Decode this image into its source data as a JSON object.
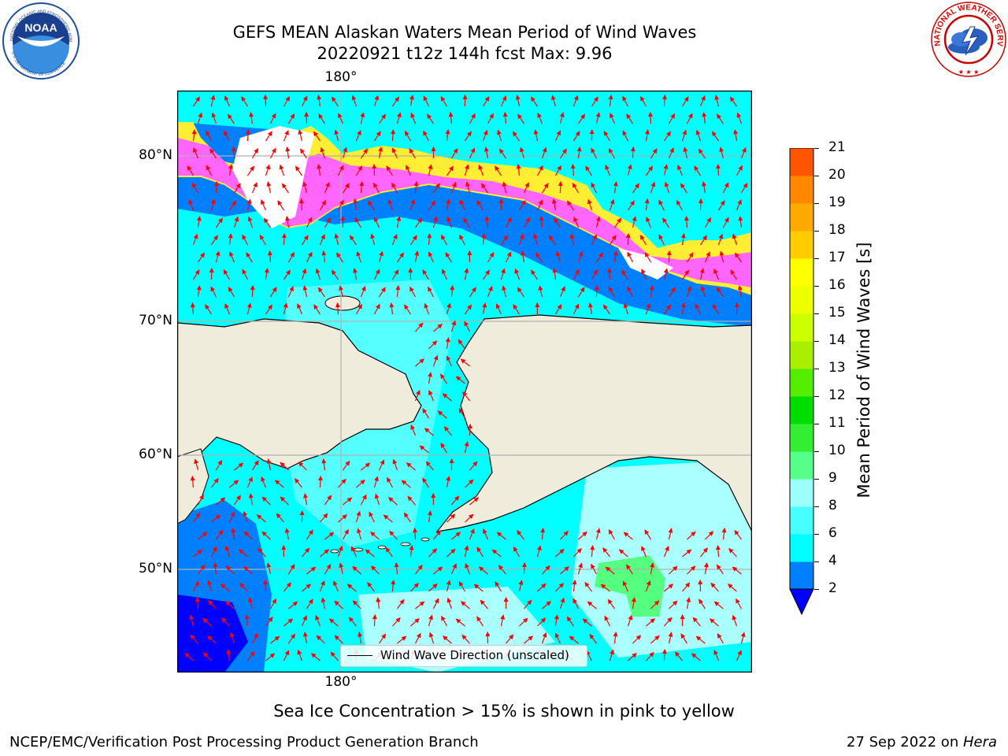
{
  "title": {
    "line1": "GEFS MEAN Alaskan Waters Mean Period of Wind Waves",
    "line2": "20220921 t12z 144h fcst   Max: 9.96"
  },
  "map": {
    "lon_label_top": "180°",
    "lon_label_bottom": "180°",
    "lat_labels": [
      "80°N",
      "70°N",
      "60°N",
      "50°N"
    ],
    "legend_label": "Wind Wave Direction (unscaled)",
    "colors": {
      "land": "#efecdc",
      "ocean_2_4": "#007fff",
      "ocean_4_6": "#00ffff",
      "ocean_6_8": "#55ffff",
      "ocean_8_9": "#aaffff",
      "ocean_9_10": "#55ff7f",
      "below_2": "#0000ff",
      "ice_pink": "#ff66ff",
      "ice_yellow": "#ffee33",
      "arrow": "#ff0000",
      "grid": "#b0b0b0",
      "coast": "#000000"
    }
  },
  "colorbar": {
    "label": "Mean Period of Wind Waves [s]",
    "ticks": [
      "2",
      "4",
      "6",
      "8",
      "9",
      "10",
      "11",
      "12",
      "13",
      "14",
      "15",
      "16",
      "17",
      "18",
      "19",
      "20",
      "21"
    ],
    "colors": [
      "#0080ff",
      "#00ffff",
      "#48ffff",
      "#9dfffc",
      "#55ff88",
      "#33ee33",
      "#00dd00",
      "#55ee00",
      "#aaee00",
      "#ccff00",
      "#eeff00",
      "#ffff00",
      "#ffcc00",
      "#ffaa00",
      "#ff8800",
      "#ff5500",
      "#ff2200",
      "#ff0000"
    ],
    "extend_color": "#0000ff"
  },
  "caption": "Sea Ice Concentration > 15% is shown in pink to yellow",
  "footer": {
    "left": "NCEP/EMC/Verification Post Processing Product Generation Branch",
    "right_date": "27 Sep 2022 on ",
    "right_host": "Hera"
  },
  "logos": {
    "noaa_text": "NOAA",
    "noaa_ring": "NATIONAL OCEANIC AND ATMOSPHERIC ADMINISTRATION",
    "noaa_ring_bottom": "U.S. DEPARTMENT OF COMMERCE",
    "nws_ring": "NATIONAL WEATHER SERVICE"
  }
}
